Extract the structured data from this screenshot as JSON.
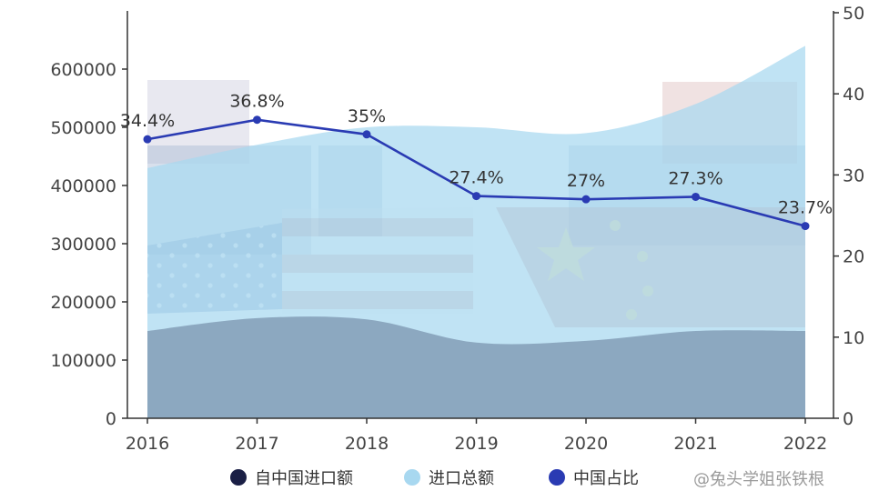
{
  "chart_data": {
    "type": "area",
    "categories": [
      "2016",
      "2017",
      "2018",
      "2019",
      "2020",
      "2021",
      "2022"
    ],
    "series": [
      {
        "name": "自中国进口额",
        "type": "area",
        "axis": "left",
        "values": [
          150000,
          172000,
          170000,
          130000,
          133000,
          150000,
          150000
        ],
        "color": "#1f2a55"
      },
      {
        "name": "进口总额",
        "type": "area",
        "axis": "left",
        "values": [
          430000,
          470000,
          500000,
          500000,
          490000,
          540000,
          640000
        ],
        "color": "#a8d8f0"
      },
      {
        "name": "中国占比",
        "type": "line",
        "axis": "right",
        "values": [
          34.4,
          36.8,
          35.0,
          27.4,
          27.0,
          27.3,
          23.7
        ],
        "labels": [
          "34.4%",
          "36.8%",
          "35%",
          "27.4%",
          "27%",
          "27.3%",
          "23.7%"
        ],
        "color": "#2a3bb3"
      }
    ],
    "y_left": {
      "min": 0,
      "max": 700000,
      "ticks": [
        "0",
        "100000",
        "200000",
        "300000",
        "400000",
        "500000",
        "600000"
      ]
    },
    "y_right": {
      "min": 0,
      "max": 50,
      "ticks": [
        "0",
        "10",
        "20",
        "30",
        "40",
        "50"
      ]
    },
    "legend_position": "bottom-center",
    "grid": false
  },
  "watermark": "@兔头学姐张铁根",
  "colors": {
    "axis": "#333333",
    "tick_text": "#444444"
  }
}
